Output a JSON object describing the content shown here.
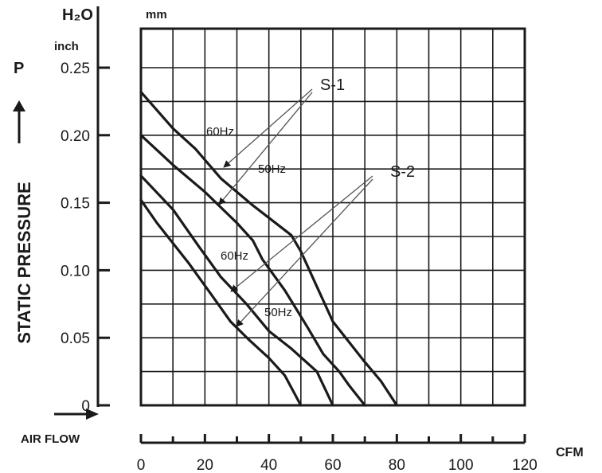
{
  "chart_data": {
    "type": "line",
    "y_unit_top": "H₂O",
    "y_unit_inch": "inch",
    "y_unit_mm": "mm",
    "y_symbol": "P",
    "ylabel": "STATIC PRESSURE",
    "xlabel": "AIR FLOW",
    "x_unit": "CFM",
    "xlim": [
      0,
      120
    ],
    "ylim": [
      0,
      0.25
    ],
    "x_ticks": [
      0,
      20,
      40,
      60,
      80,
      100,
      120
    ],
    "y_ticks": [
      0,
      0.05,
      0.1,
      0.15,
      0.2,
      0.25
    ],
    "y_tick_labels": [
      "0",
      "0.05",
      "0.10",
      "0.15",
      "0.20",
      "0.25"
    ],
    "grid": true,
    "series": [
      {
        "group": "S-1",
        "freq": "60Hz",
        "points": [
          [
            0,
            0.232
          ],
          [
            10,
            0.205
          ],
          [
            17,
            0.19
          ],
          [
            25,
            0.168
          ],
          [
            35,
            0.148
          ],
          [
            47,
            0.126
          ],
          [
            50,
            0.114
          ],
          [
            55,
            0.088
          ],
          [
            60,
            0.062
          ],
          [
            70,
            0.032
          ],
          [
            75,
            0.018
          ],
          [
            80,
            0
          ]
        ]
      },
      {
        "group": "S-1",
        "freq": "50Hz",
        "points": [
          [
            0,
            0.2
          ],
          [
            10,
            0.178
          ],
          [
            20,
            0.158
          ],
          [
            30,
            0.135
          ],
          [
            35,
            0.122
          ],
          [
            38,
            0.108
          ],
          [
            45,
            0.085
          ],
          [
            52,
            0.058
          ],
          [
            57,
            0.038
          ],
          [
            62,
            0.025
          ],
          [
            65,
            0.015
          ],
          [
            70,
            0
          ]
        ]
      },
      {
        "group": "S-2",
        "freq": "60Hz",
        "points": [
          [
            0,
            0.17
          ],
          [
            10,
            0.145
          ],
          [
            18,
            0.118
          ],
          [
            25,
            0.095
          ],
          [
            33,
            0.075
          ],
          [
            40,
            0.055
          ],
          [
            47,
            0.042
          ],
          [
            55,
            0.025
          ],
          [
            60,
            0
          ]
        ]
      },
      {
        "group": "S-2",
        "freq": "50Hz",
        "points": [
          [
            0,
            0.152
          ],
          [
            5,
            0.135
          ],
          [
            15,
            0.105
          ],
          [
            22,
            0.082
          ],
          [
            28,
            0.062
          ],
          [
            34,
            0.048
          ],
          [
            40,
            0.035
          ],
          [
            45,
            0.022
          ],
          [
            50,
            0
          ]
        ]
      }
    ],
    "annotations": {
      "s1": "S-1",
      "s2": "S-2",
      "s1_60": "60Hz",
      "s1_50": "50Hz",
      "s2_60": "60Hz",
      "s2_50": "50Hz"
    }
  }
}
